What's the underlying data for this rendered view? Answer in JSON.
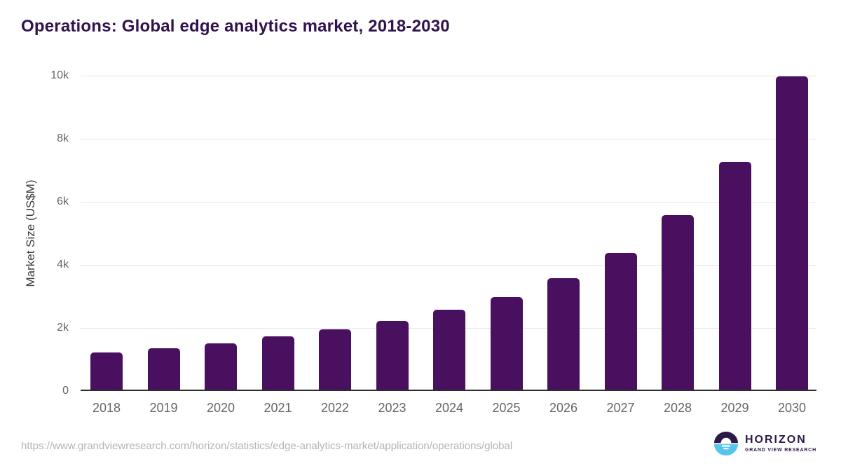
{
  "title": "Operations: Global edge analytics market, 2018-2030",
  "chart_data": {
    "type": "bar",
    "title": "Operations: Global edge analytics market, 2018-2030",
    "categories": [
      "2018",
      "2019",
      "2020",
      "2021",
      "2022",
      "2023",
      "2024",
      "2025",
      "2026",
      "2027",
      "2028",
      "2029",
      "2030"
    ],
    "values": [
      1170,
      1310,
      1470,
      1690,
      1920,
      2180,
      2530,
      2930,
      3530,
      4340,
      5530,
      7230,
      9930
    ],
    "xlabel": "",
    "ylabel": "Market Size (US$M)",
    "ylim": [
      0,
      10000
    ],
    "yticks": [
      0,
      2000,
      4000,
      6000,
      8000,
      10000
    ],
    "ytick_labels": [
      "0",
      "2k",
      "4k",
      "6k",
      "8k",
      "10k"
    ],
    "grid": true,
    "legend": false,
    "value_unit": "US$M"
  },
  "footer": {
    "source_url": "https://www.grandviewresearch.com/horizon/statistics/edge-analytics-market/application/operations/global",
    "logo": {
      "name": "HORIZON",
      "subtitle": "GRAND VIEW RESEARCH",
      "icon": "horizon-sunrise-icon"
    }
  },
  "colors": {
    "title": "#32124e",
    "bar": "#48105f",
    "axis_label": "#3f3f3f",
    "tick_label": "#666666",
    "gridline": "#e7e7e7",
    "axis_line": "#2d2d2d",
    "url": "#b3b3b3",
    "logo_purple": "#2e1a47",
    "logo_blue": "#58c4ec",
    "background": "#ffffff"
  }
}
